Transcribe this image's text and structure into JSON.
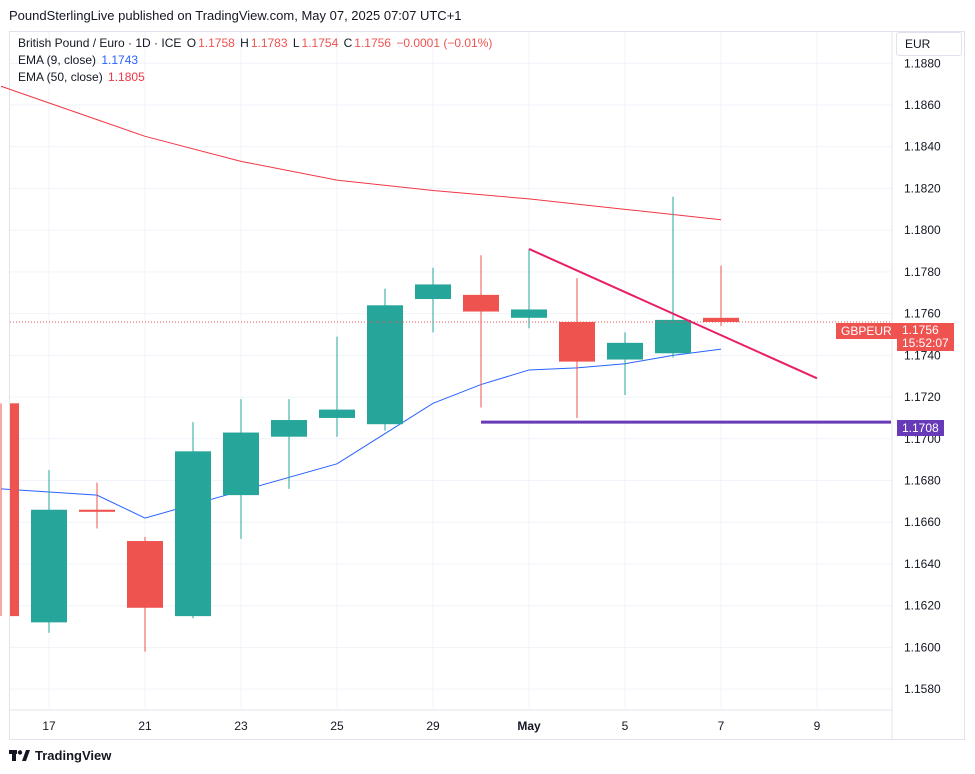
{
  "header": {
    "publisher_line": "PoundSterlingLive published on TradingView.com, May 07, 2025 07:07 UTC+1"
  },
  "legend": {
    "symbol_line": "British Pound / Euro · 1D · ICE",
    "o_label": "O",
    "o_value": "1.1758",
    "h_label": "H",
    "h_value": "1.1783",
    "l_label": "L",
    "l_value": "1.1754",
    "c_label": "C",
    "c_value": "1.1756",
    "change": "−0.0001 (−0.01%)",
    "ema9_label": "EMA (9, close)",
    "ema9_value": "1.1743",
    "ema50_label": "EMA (50, close)",
    "ema50_value": "1.1805"
  },
  "currency": "EUR",
  "price_tag": {
    "symbol": "GBPEUR",
    "price": "1.1756",
    "countdown": "15:52:07"
  },
  "support_tag": "1.1708",
  "footer": {
    "brand": "TradingView"
  },
  "colors": {
    "up": "#26a69a",
    "down": "#ef5350",
    "ema9": "#2962ff",
    "ema50": "#f23645",
    "trendline": "#e91e63",
    "support": "#673ab7",
    "grid": "#f0f3fa"
  },
  "chart_data": {
    "type": "candlestick",
    "y_axis": {
      "range": [
        1.157,
        1.1895
      ],
      "ticks": [
        "1.1580",
        "1.1600",
        "1.1620",
        "1.1640",
        "1.1660",
        "1.1680",
        "1.1700",
        "1.1720",
        "1.1740",
        "1.1760",
        "1.1780",
        "1.1800",
        "1.1820",
        "1.1840",
        "1.1860",
        "1.1880"
      ]
    },
    "x_axis": {
      "ticks": [
        {
          "i": 1,
          "label": "17"
        },
        {
          "i": 3,
          "label": "21"
        },
        {
          "i": 5,
          "label": "23"
        },
        {
          "i": 7,
          "label": "25"
        },
        {
          "i": 9,
          "label": "29"
        },
        {
          "i": 11,
          "label": "May"
        },
        {
          "i": 13,
          "label": "5"
        },
        {
          "i": 15,
          "label": "7"
        },
        {
          "i": 17,
          "label": "9"
        }
      ]
    },
    "candles": [
      {
        "i": 0,
        "o": 1.1717,
        "h": 1.1717,
        "l": 1.1615,
        "c": 1.1615
      },
      {
        "i": 1,
        "o": 1.1612,
        "h": 1.1685,
        "l": 1.1607,
        "c": 1.1666
      },
      {
        "i": 2,
        "o": 1.1666,
        "h": 1.1679,
        "l": 1.1657,
        "c": 1.1665
      },
      {
        "i": 3,
        "o": 1.1651,
        "h": 1.1653,
        "l": 1.1598,
        "c": 1.1619
      },
      {
        "i": 4,
        "o": 1.1615,
        "h": 1.1708,
        "l": 1.1614,
        "c": 1.1694
      },
      {
        "i": 5,
        "o": 1.1673,
        "h": 1.1719,
        "l": 1.1652,
        "c": 1.1703
      },
      {
        "i": 6,
        "o": 1.1701,
        "h": 1.1719,
        "l": 1.1676,
        "c": 1.1709
      },
      {
        "i": 7,
        "o": 1.171,
        "h": 1.1749,
        "l": 1.1701,
        "c": 1.1714
      },
      {
        "i": 8,
        "o": 1.1707,
        "h": 1.1772,
        "l": 1.1704,
        "c": 1.1764
      },
      {
        "i": 9,
        "o": 1.1767,
        "h": 1.1782,
        "l": 1.1751,
        "c": 1.1774
      },
      {
        "i": 10,
        "o": 1.1769,
        "h": 1.1788,
        "l": 1.1715,
        "c": 1.1761
      },
      {
        "i": 11,
        "o": 1.1758,
        "h": 1.1791,
        "l": 1.1753,
        "c": 1.1762
      },
      {
        "i": 12,
        "o": 1.1756,
        "h": 1.1777,
        "l": 1.171,
        "c": 1.1737
      },
      {
        "i": 13,
        "o": 1.1738,
        "h": 1.1751,
        "l": 1.1721,
        "c": 1.1746
      },
      {
        "i": 14,
        "o": 1.1741,
        "h": 1.1816,
        "l": 1.1739,
        "c": 1.1757
      },
      {
        "i": 15,
        "o": 1.1758,
        "h": 1.1783,
        "l": 1.1754,
        "c": 1.1756
      }
    ],
    "ema9": [
      [
        0,
        1.1676
      ],
      [
        2,
        1.1673
      ],
      [
        3,
        1.1662
      ],
      [
        5,
        1.1675
      ],
      [
        7,
        1.1688
      ],
      [
        9,
        1.1717
      ],
      [
        10,
        1.1726
      ],
      [
        11,
        1.1733
      ],
      [
        12,
        1.1734
      ],
      [
        13,
        1.1736
      ],
      [
        14,
        1.174
      ],
      [
        15,
        1.1743
      ]
    ],
    "ema50": [
      [
        0,
        1.1869
      ],
      [
        2,
        1.1853
      ],
      [
        3,
        1.1845
      ],
      [
        5,
        1.1833
      ],
      [
        7,
        1.1824
      ],
      [
        9,
        1.1819
      ],
      [
        11,
        1.1815
      ],
      [
        13,
        1.181
      ],
      [
        15,
        1.1805
      ]
    ],
    "trendline": [
      [
        11,
        1.1791
      ],
      [
        17,
        1.1729
      ]
    ],
    "support": {
      "from": 10,
      "value": 1.1708
    },
    "last_price": 1.1756
  }
}
